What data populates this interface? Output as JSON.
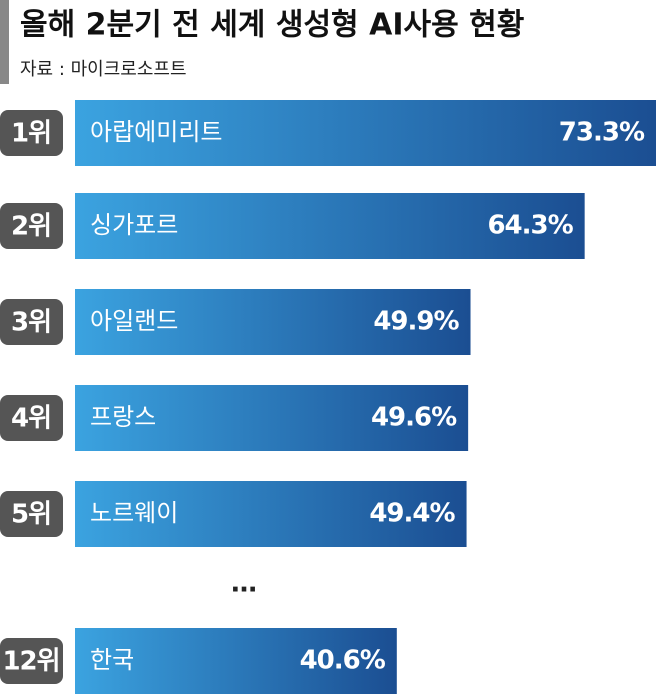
{
  "chart_data": {
    "type": "bar",
    "orientation": "horizontal",
    "title": "올해 2분기 전 세계 생성형 AI사용 현황",
    "source": "자료 : 마이크로소프트",
    "ranks": [
      "1위",
      "2위",
      "3위",
      "4위",
      "5위",
      "12위"
    ],
    "categories": [
      "아랍에미리트",
      "싱가포르",
      "아일랜드",
      "프랑스",
      "노르웨이",
      "한국"
    ],
    "values": [
      73.3,
      64.3,
      49.9,
      49.6,
      49.4,
      40.6
    ],
    "value_labels": [
      "73.3%",
      "64.3%",
      "49.9%",
      "49.6%",
      "49.4%",
      "40.6%"
    ],
    "gap_label": "…",
    "color_start": "#3ba3e0",
    "color_end": "#1b4e92",
    "rank_color": "#555555"
  }
}
